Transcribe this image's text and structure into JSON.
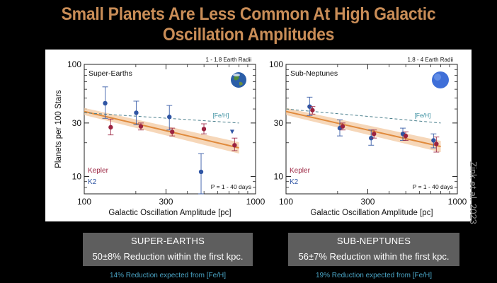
{
  "title": "Small Planets Are Less Common At High Galactic Oscillation Amplitudes",
  "credit": "Zink et al. 2023",
  "chart_data": [
    {
      "type": "scatter",
      "panel_label": "Super-Earths",
      "radius_range": "1 - 1.8 Earth Radii",
      "xlabel": "Galactic Oscillation Amplitude [pc]",
      "ylabel": "Planets per 100 Stars",
      "xscale": "log",
      "yscale": "log",
      "xlim": [
        100,
        1000
      ],
      "ylim": [
        7,
        100
      ],
      "xticks": [
        "100",
        "300",
        "1000"
      ],
      "yticks": [
        "10",
        "30",
        "100"
      ],
      "period_note": "P = 1 - 40 days",
      "feh_label": "[Fe/H]",
      "feh_line": {
        "x": [
          100,
          800
        ],
        "y": [
          37,
          30
        ]
      },
      "fit_line": {
        "x": [
          100,
          800
        ],
        "y": [
          38,
          18
        ]
      },
      "series": [
        {
          "name": "Kepler",
          "color": "#9b2340",
          "x": [
            140,
            210,
            320,
            490,
            740
          ],
          "y": [
            27.5,
            28,
            25,
            26.5,
            19
          ],
          "err_low": [
            4,
            2,
            2,
            2.5,
            2
          ],
          "err_high": [
            5,
            2,
            2,
            3,
            3
          ]
        },
        {
          "name": "K2",
          "color": "#2f55a4",
          "x": [
            135,
            205,
            320,
            490
          ],
          "y": [
            45,
            37,
            34,
            11
          ],
          "err_low": [
            12,
            8,
            8,
            4
          ],
          "err_high": [
            18,
            10,
            9,
            5
          ]
        }
      ],
      "upper_limits": [
        {
          "series": "K2",
          "x": 730,
          "y": 25
        }
      ]
    },
    {
      "type": "scatter",
      "panel_label": "Sub-Neptunes",
      "radius_range": "1.8 - 4 Earth Radii",
      "xlabel": "Galactic Oscillation Amplitude [pc]",
      "ylabel": "",
      "xscale": "log",
      "yscale": "log",
      "xlim": [
        100,
        1000
      ],
      "ylim": [
        7,
        100
      ],
      "xticks": [
        "100",
        "300",
        "1000"
      ],
      "yticks": [
        "10",
        "30",
        "100"
      ],
      "period_note": "P = 1 - 40 days",
      "feh_label": "[Fe/H]",
      "feh_line": {
        "x": [
          100,
          800
        ],
        "y": [
          40,
          30
        ]
      },
      "fit_line": {
        "x": [
          100,
          800
        ],
        "y": [
          38,
          18.5
        ]
      },
      "series": [
        {
          "name": "Kepler",
          "color": "#9b2340",
          "x": [
            140,
            210,
            320,
            490,
            740
          ],
          "y": [
            39,
            28,
            24,
            23,
            19.5
          ],
          "err_low": [
            3,
            2,
            2,
            2,
            3
          ],
          "err_high": [
            3,
            2,
            2,
            2,
            3
          ]
        },
        {
          "name": "K2",
          "color": "#2f55a4",
          "x": [
            140,
            210,
            320,
            490,
            740
          ],
          "y": [
            42,
            27,
            22,
            24,
            21
          ],
          "err_low": [
            7,
            4,
            3,
            3,
            3
          ],
          "err_high": [
            9,
            5,
            4,
            3,
            3
          ]
        }
      ]
    }
  ],
  "boxes": [
    {
      "title": "SUPER-EARTHS",
      "stat": "50±8% Reduction within the first kpc.",
      "note": "14% Reduction expected from [Fe/H]"
    },
    {
      "title": "SUB-NEPTUNES",
      "stat": "56±7% Reduction within the first kpc.",
      "note": "19% Reduction expected from [Fe/H]"
    }
  ]
}
